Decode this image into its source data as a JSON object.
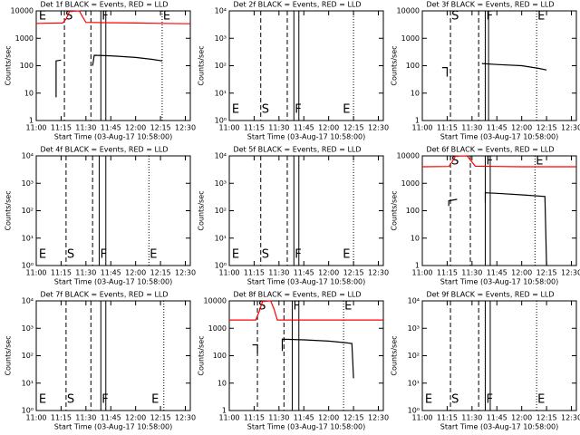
{
  "chart_data": [
    {
      "type": "line",
      "title": "Det 1f BLACK = Events, RED = LLD",
      "xlabel": "Start Time (03-Aug-17 10:58:00)",
      "ylabel": "Counts/sec",
      "ylog": true,
      "xlim": [
        "11:00",
        "12:33"
      ],
      "xticks": [
        "11:00",
        "11:15",
        "11:30",
        "11:45",
        "12:00",
        "12:15",
        "12:30"
      ],
      "ylim": [
        1,
        10000
      ],
      "yticks": [
        1,
        10,
        100,
        1000,
        10000
      ],
      "series": [
        {
          "name": "LLD",
          "color": "#ff0000",
          "x": [
            "11:00",
            "11:16",
            "11:18",
            "11:20",
            "11:26",
            "11:28",
            "11:30",
            "11:45",
            "12:00",
            "12:15",
            "12:33"
          ],
          "values": [
            3500,
            3600,
            5000,
            9500,
            10000,
            6000,
            3800,
            3700,
            3600,
            3500,
            3400
          ]
        },
        {
          "name": "Events",
          "color": "#000000",
          "x": [
            "11:12",
            "11:12",
            "11:15",
            "11:15",
            "11:34",
            "11:35",
            "11:45",
            "12:00",
            "12:10",
            "12:16"
          ],
          "values": [
            7,
            150,
            160,
            null,
            100,
            240,
            230,
            200,
            170,
            150
          ]
        }
      ],
      "markers": [
        {
          "x": "11:01",
          "label": "E"
        },
        {
          "x": "11:17",
          "style": "dashed",
          "label": "S"
        },
        {
          "x": "11:33",
          "style": "dashed"
        },
        {
          "x": "11:39",
          "style": "solid",
          "label": "F"
        },
        {
          "x": "11:42",
          "style": "solid"
        },
        {
          "x": "12:16",
          "style": "dotted",
          "label": "E"
        }
      ]
    },
    {
      "type": "line",
      "title": "Det 2f BLACK = Events, RED = LLD",
      "xlabel": "Start Time (03-Aug-17 10:58:00)",
      "ylabel": "Counts/sec",
      "ylog": true,
      "xlim": [
        "11:00",
        "12:33"
      ],
      "xticks": [
        "11:00",
        "11:15",
        "11:30",
        "11:45",
        "12:00",
        "12:15",
        "12:30"
      ],
      "ylim": [
        1,
        10000
      ],
      "yticks": [
        {
          "value": 1,
          "label": "10⁰"
        },
        {
          "value": 10,
          "label": "10¹"
        },
        {
          "value": 100,
          "label": "10²"
        },
        {
          "value": 1000,
          "label": "10³"
        },
        {
          "value": 10000,
          "label": "10⁴"
        }
      ],
      "series": [],
      "markers": [
        {
          "x": "11:01",
          "label": "E"
        },
        {
          "x": "11:19",
          "style": "dashed",
          "label": "S"
        },
        {
          "x": "11:35",
          "style": "dashed"
        },
        {
          "x": "11:39",
          "style": "solid",
          "label": "F"
        },
        {
          "x": "11:42",
          "style": "solid"
        },
        {
          "x": "12:15",
          "style": "dotted"
        },
        {
          "x": "12:08",
          "label": "E"
        }
      ]
    },
    {
      "type": "line",
      "title": "Det 3f BLACK = Events, RED = LLD",
      "xlabel": "Start Time (03-Aug-17 10:58:00)",
      "ylabel": "Counts/sec",
      "ylog": true,
      "xlim": [
        "11:00",
        "12:33"
      ],
      "xticks": [
        "11:00",
        "11:15",
        "11:30",
        "11:45",
        "12:00",
        "12:15",
        "12:30"
      ],
      "ylim": [
        1,
        10000
      ],
      "yticks": [
        1,
        10,
        100,
        1000,
        10000
      ],
      "series": [
        {
          "name": "Events",
          "color": "#000000",
          "x": [
            "11:12",
            "11:15",
            "11:15",
            "11:16",
            "11:36",
            "11:45",
            "12:00",
            "12:10",
            "12:15"
          ],
          "values": [
            85,
            85,
            40,
            null,
            120,
            110,
            100,
            80,
            70
          ]
        }
      ],
      "markers": [
        {
          "x": "11:17",
          "style": "dashed",
          "label": "S"
        },
        {
          "x": "11:34",
          "style": "dashed"
        },
        {
          "x": "11:38",
          "style": "solid",
          "label": "F"
        },
        {
          "x": "11:40",
          "style": "solid"
        },
        {
          "x": "12:09",
          "style": "dotted",
          "label": "E"
        }
      ]
    },
    {
      "type": "line",
      "title": "Det 4f BLACK = Events, RED = LLD",
      "xlabel": "Start Time (03-Aug-17 10:58:00)",
      "ylabel": "Counts/sec",
      "ylog": true,
      "xlim": [
        "11:00",
        "12:33"
      ],
      "xticks": [
        "11:00",
        "11:15",
        "11:30",
        "11:45",
        "12:00",
        "12:15",
        "12:30"
      ],
      "ylim": [
        1,
        10000
      ],
      "yticks": [
        {
          "value": 1,
          "label": "10⁰"
        },
        {
          "value": 10,
          "label": "10¹"
        },
        {
          "value": 100,
          "label": "10²"
        },
        {
          "value": 1000,
          "label": "10³"
        },
        {
          "value": 10000,
          "label": "10⁴"
        }
      ],
      "series": [],
      "markers": [
        {
          "x": "11:01",
          "label": "E"
        },
        {
          "x": "11:18",
          "style": "dashed",
          "label": "S"
        },
        {
          "x": "11:34",
          "style": "dashed"
        },
        {
          "x": "11:38",
          "style": "solid",
          "label": "F"
        },
        {
          "x": "11:42",
          "style": "solid"
        },
        {
          "x": "12:08",
          "style": "dotted",
          "label": "E"
        }
      ]
    },
    {
      "type": "line",
      "title": "Det 5f BLACK = Events, RED = LLD",
      "xlabel": "Start Time (03-Aug-17 10:58:00)",
      "ylabel": "Counts/sec",
      "ylog": true,
      "xlim": [
        "11:00",
        "12:33"
      ],
      "xticks": [
        "11:00",
        "11:15",
        "11:30",
        "11:45",
        "12:00",
        "12:15",
        "12:30"
      ],
      "ylim": [
        1,
        10000
      ],
      "yticks": [
        {
          "value": 1,
          "label": "10⁰"
        },
        {
          "value": 10,
          "label": "10¹"
        },
        {
          "value": 100,
          "label": "10²"
        },
        {
          "value": 1000,
          "label": "10³"
        },
        {
          "value": 10000,
          "label": "10⁴"
        }
      ],
      "series": [],
      "markers": [
        {
          "x": "11:01",
          "label": "E"
        },
        {
          "x": "11:19",
          "style": "dashed",
          "label": "S"
        },
        {
          "x": "11:35",
          "style": "dashed"
        },
        {
          "x": "11:39",
          "style": "solid",
          "label": "F"
        },
        {
          "x": "11:42",
          "style": "solid"
        },
        {
          "x": "12:15",
          "style": "dotted"
        },
        {
          "x": "12:08",
          "label": "E"
        }
      ]
    },
    {
      "type": "line",
      "title": "Det 6f BLACK = Events, RED = LLD",
      "xlabel": "Start Time (03-Aug-17 10:58:00)",
      "ylabel": "Counts/sec",
      "ylog": true,
      "xlim": [
        "11:00",
        "12:33"
      ],
      "xticks": [
        "11:00",
        "11:15",
        "11:30",
        "11:45",
        "12:00",
        "12:15",
        "12:30"
      ],
      "ylim": [
        1,
        10000
      ],
      "yticks": [
        1,
        10,
        100,
        1000,
        10000
      ],
      "series": [
        {
          "name": "LLD",
          "color": "#ff0000",
          "x": [
            "11:00",
            "11:16",
            "11:18",
            "11:20",
            "11:27",
            "11:30",
            "11:32",
            "11:45",
            "12:00",
            "12:15",
            "12:33"
          ],
          "values": [
            4000,
            4100,
            6000,
            9800,
            10000,
            6000,
            4200,
            4100,
            4000,
            4000,
            4000
          ]
        },
        {
          "name": "Events",
          "color": "#000000",
          "x": [
            "11:16",
            "11:16",
            "11:21",
            "11:21",
            "11:38",
            "11:38",
            "11:45",
            "12:00",
            "12:14",
            "12:15"
          ],
          "values": [
            150,
            230,
            260,
            null,
            200,
            450,
            430,
            380,
            330,
            1
          ]
        }
      ],
      "markers": [
        {
          "x": "11:17",
          "style": "dashed",
          "label": "S"
        },
        {
          "x": "11:29",
          "style": "dashed"
        },
        {
          "x": "11:38",
          "style": "solid",
          "label": "F"
        },
        {
          "x": "11:41",
          "style": "solid"
        },
        {
          "x": "12:08",
          "style": "dotted",
          "label": "E"
        }
      ]
    },
    {
      "type": "line",
      "title": "Det 7f BLACK = Events, RED = LLD",
      "xlabel": "Start Time (03-Aug-17 10:58:00)",
      "ylabel": "Counts/sec",
      "ylog": true,
      "xlim": [
        "11:00",
        "12:33"
      ],
      "xticks": [
        "11:00",
        "11:15",
        "11:30",
        "11:45",
        "12:00",
        "12:15",
        "12:30"
      ],
      "ylim": [
        1,
        10000
      ],
      "yticks": [
        {
          "value": 1,
          "label": "10⁰"
        },
        {
          "value": 10,
          "label": "10¹"
        },
        {
          "value": 100,
          "label": "10²"
        },
        {
          "value": 1000,
          "label": "10³"
        },
        {
          "value": 10000,
          "label": "10⁴"
        }
      ],
      "series": [],
      "markers": [
        {
          "x": "11:01",
          "label": "E"
        },
        {
          "x": "11:18",
          "style": "dashed",
          "label": "S"
        },
        {
          "x": "11:33",
          "style": "dashed"
        },
        {
          "x": "11:39",
          "style": "solid",
          "label": "F"
        },
        {
          "x": "11:42",
          "style": "solid"
        },
        {
          "x": "12:17",
          "style": "dotted"
        },
        {
          "x": "12:09",
          "label": "E"
        }
      ]
    },
    {
      "type": "line",
      "title": "Det 8f BLACK = Events, RED = LLD",
      "xlabel": "Start Time (03-Aug-17 10:58:00)",
      "ylabel": "Counts/sec",
      "ylog": true,
      "xlim": [
        "11:00",
        "12:33"
      ],
      "xticks": [
        "11:00",
        "11:15",
        "11:30",
        "11:45",
        "12:00",
        "12:15",
        "12:30"
      ],
      "ylim": [
        1,
        10000
      ],
      "yticks": [
        1,
        10,
        100,
        1000,
        10000
      ],
      "series": [
        {
          "name": "LLD",
          "color": "#ff0000",
          "x": [
            "11:00",
            "11:16",
            "11:18",
            "11:20",
            "11:25",
            "11:27",
            "11:29",
            "11:45",
            "12:00",
            "12:15",
            "12:33"
          ],
          "values": [
            2000,
            2000,
            4000,
            9500,
            10000,
            5000,
            2000,
            2000,
            2000,
            2000,
            2000
          ]
        },
        {
          "name": "Events",
          "color": "#000000",
          "x": [
            "11:14",
            "11:17",
            "11:17",
            "11:18",
            "11:32",
            "11:32",
            "11:45",
            "12:00",
            "12:10",
            "12:14",
            "12:15"
          ],
          "values": [
            250,
            250,
            120,
            null,
            150,
            400,
            380,
            340,
            300,
            280,
            15
          ]
        }
      ],
      "markers": [
        {
          "x": "11:17",
          "style": "dashed",
          "label": "S"
        },
        {
          "x": "11:33",
          "style": "dashed"
        },
        {
          "x": "11:38",
          "style": "solid",
          "label": "F"
        },
        {
          "x": "11:42",
          "style": "solid"
        },
        {
          "x": "12:09",
          "style": "dotted",
          "label": "E"
        }
      ]
    },
    {
      "type": "line",
      "title": "Det 9f BLACK = Events, RED = LLD",
      "xlabel": "Start Time (03-Aug-17 10:58:00)",
      "ylabel": "Counts/sec",
      "ylog": true,
      "xlim": [
        "11:00",
        "12:33"
      ],
      "xticks": [
        "11:00",
        "11:15",
        "11:30",
        "11:45",
        "12:00",
        "12:15",
        "12:30"
      ],
      "ylim": [
        1,
        10000
      ],
      "yticks": [
        {
          "value": 1,
          "label": "10⁰"
        },
        {
          "value": 10,
          "label": "10¹"
        },
        {
          "value": 100,
          "label": "10²"
        },
        {
          "value": 1000,
          "label": "10³"
        },
        {
          "value": 10000,
          "label": "10⁴"
        }
      ],
      "series": [],
      "markers": [
        {
          "x": "11:01",
          "label": "E"
        },
        {
          "x": "11:17",
          "style": "dashed",
          "label": "S"
        },
        {
          "x": "11:34",
          "style": "dashed"
        },
        {
          "x": "11:38",
          "style": "solid",
          "label": "F"
        },
        {
          "x": "11:41",
          "style": "solid"
        },
        {
          "x": "12:09",
          "style": "dotted",
          "label": "E"
        }
      ]
    }
  ]
}
